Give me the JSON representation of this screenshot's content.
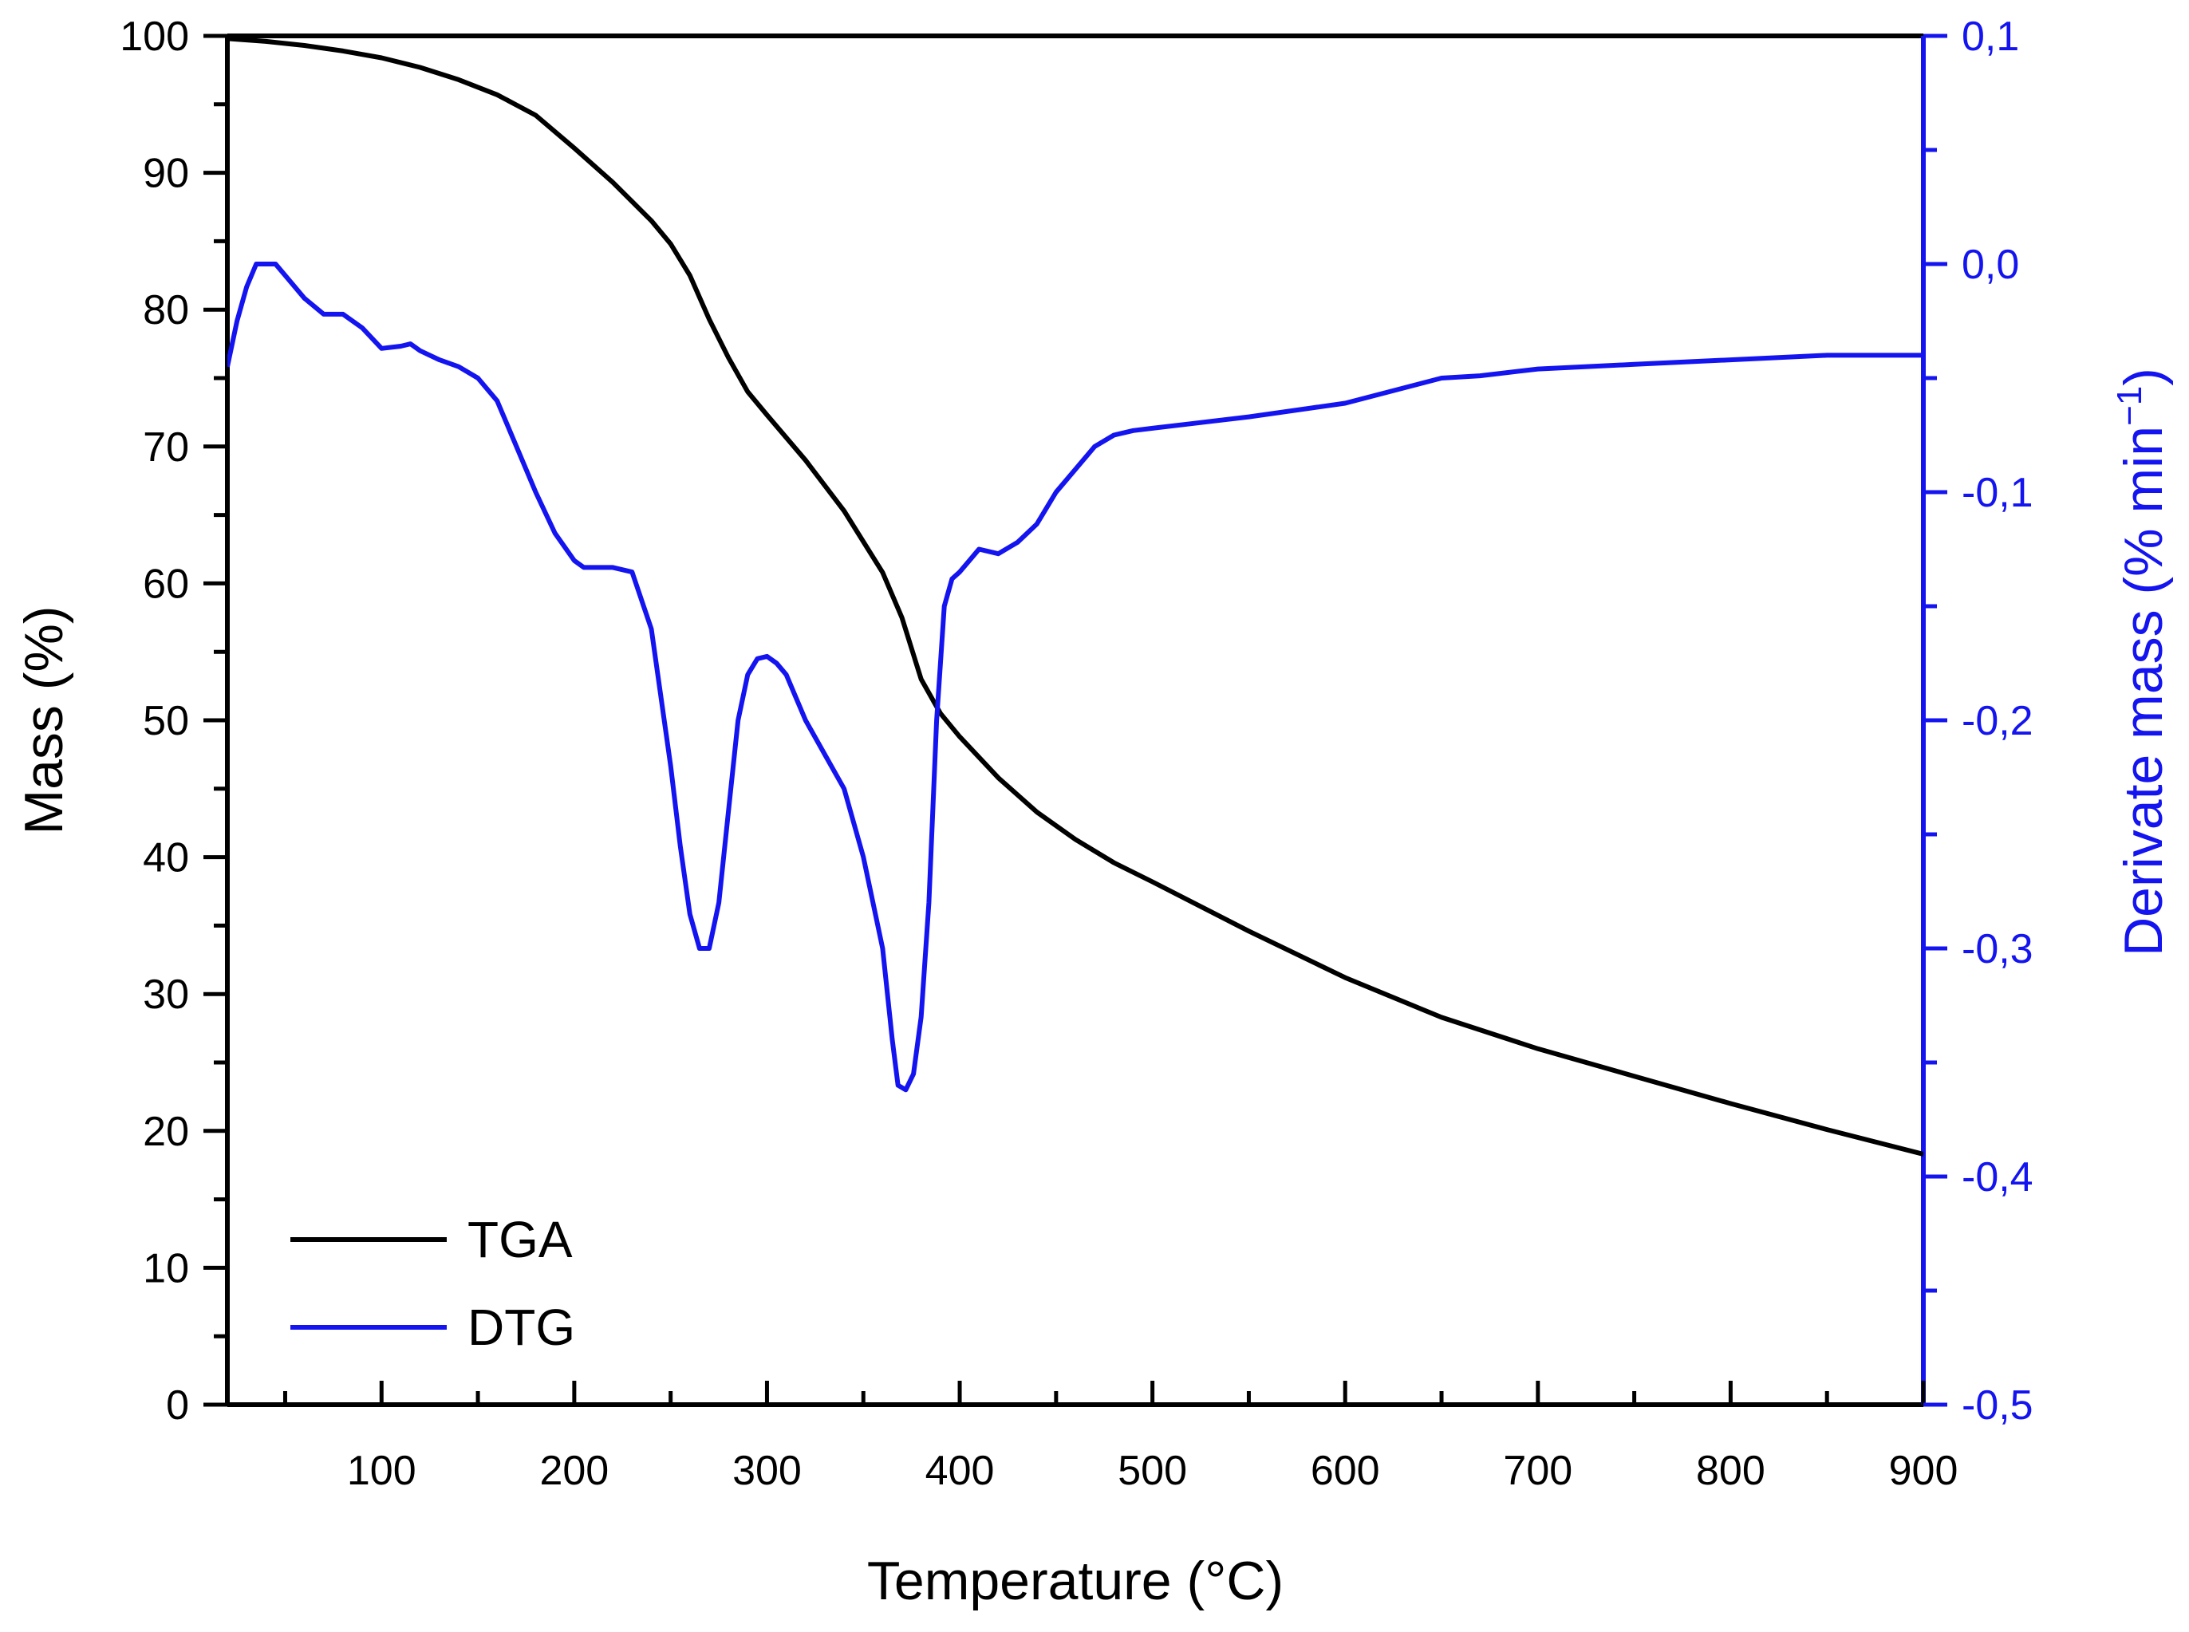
{
  "chart_data": {
    "type": "line",
    "title": "",
    "xlabel": "Temperature (°C)",
    "ylabel_left": "Mass (%)",
    "ylabel_right_prefix": "Derivate mass (% min",
    "ylabel_right_sup": "−1",
    "ylabel_right_suffix": ")",
    "xlim": [
      20,
      900
    ],
    "ylim_left": [
      0,
      100
    ],
    "ylim_right": [
      -0.5,
      0.1
    ],
    "x_ticks": [
      100,
      200,
      300,
      400,
      500,
      600,
      700,
      800,
      900
    ],
    "x_tick_labels": [
      "100",
      "200",
      "300",
      "400",
      "500",
      "600",
      "700",
      "800",
      "900"
    ],
    "y_left_ticks": [
      0,
      10,
      20,
      30,
      40,
      50,
      60,
      70,
      80,
      90,
      100
    ],
    "y_left_tick_labels": [
      "0",
      "10",
      "20",
      "30",
      "40",
      "50",
      "60",
      "70",
      "80",
      "90",
      "100"
    ],
    "y_right_ticks": [
      -0.5,
      -0.4,
      -0.3,
      -0.2,
      -0.1,
      0.0,
      0.1
    ],
    "y_right_tick_labels": [
      "-0,5",
      "-0,4",
      "-0,3",
      "-0,2",
      "-0,1",
      "0,0",
      "0,1"
    ],
    "grid": false,
    "legend_position": "bottom-left",
    "series": [
      {
        "name": "TGA",
        "axis": "left",
        "color": "#000000",
        "x": [
          20,
          40,
          60,
          80,
          100,
          120,
          140,
          160,
          180,
          200,
          220,
          240,
          250,
          260,
          270,
          280,
          290,
          300,
          320,
          340,
          360,
          370,
          380,
          390,
          400,
          420,
          440,
          460,
          480,
          500,
          550,
          600,
          650,
          700,
          750,
          800,
          850,
          900
        ],
        "values": [
          99.8,
          99.6,
          99.3,
          98.9,
          98.4,
          97.7,
          96.8,
          95.7,
          94.2,
          91.8,
          89.3,
          86.5,
          84.8,
          82.5,
          79.3,
          76.5,
          74.0,
          72.3,
          69.0,
          65.3,
          60.8,
          57.5,
          53.0,
          50.5,
          48.8,
          45.8,
          43.3,
          41.3,
          39.6,
          38.2,
          34.6,
          31.2,
          28.3,
          26.0,
          24.0,
          22.0,
          20.1,
          18.3
        ]
      },
      {
        "name": "DTG",
        "axis": "right",
        "color": "#1414f0",
        "x": [
          20,
          25,
          30,
          35,
          40,
          45,
          50,
          60,
          70,
          80,
          90,
          100,
          110,
          115,
          120,
          130,
          140,
          150,
          160,
          170,
          180,
          190,
          200,
          205,
          210,
          220,
          230,
          240,
          250,
          255,
          260,
          265,
          270,
          275,
          280,
          285,
          290,
          295,
          300,
          305,
          310,
          315,
          320,
          330,
          340,
          350,
          360,
          365,
          368,
          372,
          376,
          380,
          384,
          388,
          392,
          396,
          400,
          405,
          410,
          420,
          430,
          440,
          450,
          460,
          470,
          480,
          490,
          500,
          520,
          550,
          600,
          650,
          670,
          700,
          750,
          800,
          850,
          900
        ],
        "values": [
          -0.045,
          -0.025,
          -0.01,
          0.0,
          0.0,
          0.0,
          -0.005,
          -0.015,
          -0.022,
          -0.022,
          -0.028,
          -0.037,
          -0.036,
          -0.035,
          -0.038,
          -0.042,
          -0.045,
          -0.05,
          -0.06,
          -0.08,
          -0.1,
          -0.118,
          -0.13,
          -0.133,
          -0.133,
          -0.133,
          -0.135,
          -0.16,
          -0.22,
          -0.255,
          -0.285,
          -0.3,
          -0.3,
          -0.28,
          -0.24,
          -0.2,
          -0.18,
          -0.173,
          -0.172,
          -0.175,
          -0.18,
          -0.19,
          -0.2,
          -0.215,
          -0.23,
          -0.26,
          -0.3,
          -0.34,
          -0.36,
          -0.362,
          -0.355,
          -0.33,
          -0.28,
          -0.2,
          -0.15,
          -0.138,
          -0.135,
          -0.13,
          -0.125,
          -0.127,
          -0.122,
          -0.114,
          -0.1,
          -0.09,
          -0.08,
          -0.075,
          -0.073,
          -0.072,
          -0.07,
          -0.067,
          -0.061,
          -0.05,
          -0.049,
          -0.046,
          -0.044,
          -0.042,
          -0.04,
          -0.04
        ]
      }
    ]
  }
}
